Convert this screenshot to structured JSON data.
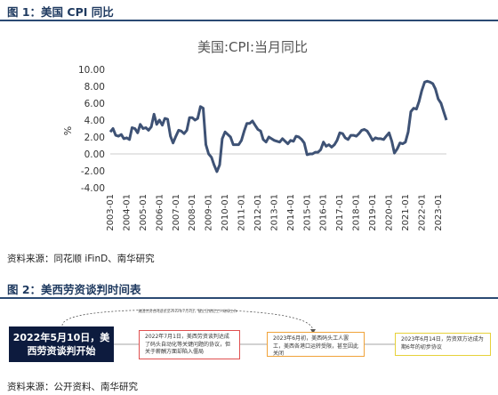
{
  "figure1": {
    "heading": "图 1：美国 CPI 同比",
    "source": "资料来源：同花顺 iFinD、南华研究"
  },
  "figure2": {
    "heading": "图 2：美西劳资谈判时间表",
    "source": "资料来源：公开资料、南华研究",
    "top_arrow_note": "美国劳资合同延长至2022年7月1日，截止日期后工人继续工作",
    "events": [
      {
        "text": "2022年5月10日，美西劳资谈判开始"
      },
      {
        "text": "2022年7月1日，美西劳资谈判达成了码头自动化等关键问题的协议，但关于薪酬方面却陷入僵局"
      },
      {
        "text": "2023年6月初，美西码头工人罢工，美西各港口运转受限，甚至因此关闭"
      },
      {
        "text": "2023年6月14日，劳资双方达成为期6年的初步协议"
      }
    ],
    "colors": {
      "event1": "#0d1b3e",
      "event2": "#e05050",
      "event3": "#f0a33a",
      "event4": "#e6d13a"
    }
  },
  "chart_data": {
    "type": "line",
    "title": "美国:CPI:当月同比",
    "ylabel": "%",
    "xlabel": "",
    "ylim": [
      -4,
      10
    ],
    "yticks": [
      "10.00",
      "8.00",
      "6.00",
      "4.00",
      "2.00",
      "0.00",
      "-2.00",
      "-4.00"
    ],
    "xticks": [
      "2003-01",
      "2004-01",
      "2005-01",
      "2006-01",
      "2007-01",
      "2008-01",
      "2009-01",
      "2010-01",
      "2011-01",
      "2012-01",
      "2013-01",
      "2014-01",
      "2015-01",
      "2016-01",
      "2017-01",
      "2018-01",
      "2019-01",
      "2020-01",
      "2021-01",
      "2022-01",
      "2023-01"
    ],
    "color": "#3e5275",
    "series": [
      {
        "x": [
          2003.0,
          2003.17,
          2003.33,
          2003.5,
          2003.67,
          2003.83,
          2004.0,
          2004.17,
          2004.33,
          2004.5,
          2004.67,
          2004.83,
          2005.0,
          2005.17,
          2005.33,
          2005.5,
          2005.67,
          2005.83,
          2006.0,
          2006.17,
          2006.33,
          2006.5,
          2006.67,
          2006.83,
          2007.0,
          2007.17,
          2007.33,
          2007.5,
          2007.67,
          2007.83,
          2008.0,
          2008.17,
          2008.33,
          2008.5,
          2008.67,
          2008.83,
          2009.0,
          2009.17,
          2009.33,
          2009.5,
          2009.67,
          2009.83,
          2010.0,
          2010.17,
          2010.33,
          2010.5,
          2010.67,
          2010.83,
          2011.0,
          2011.17,
          2011.33,
          2011.5,
          2011.67,
          2011.83,
          2012.0,
          2012.17,
          2012.33,
          2012.5,
          2012.67,
          2012.83,
          2013.0,
          2013.17,
          2013.33,
          2013.5,
          2013.67,
          2013.83,
          2014.0,
          2014.17,
          2014.33,
          2014.5,
          2014.67,
          2014.83,
          2015.0,
          2015.17,
          2015.33,
          2015.5,
          2015.67,
          2015.83,
          2016.0,
          2016.17,
          2016.33,
          2016.5,
          2016.67,
          2016.83,
          2017.0,
          2017.17,
          2017.33,
          2017.5,
          2017.67,
          2017.83,
          2018.0,
          2018.17,
          2018.33,
          2018.5,
          2018.67,
          2018.83,
          2019.0,
          2019.17,
          2019.33,
          2019.5,
          2019.67,
          2019.83,
          2020.0,
          2020.17,
          2020.33,
          2020.5,
          2020.67,
          2020.83,
          2021.0,
          2021.17,
          2021.33,
          2021.5,
          2021.67,
          2021.83,
          2022.0,
          2022.17,
          2022.33,
          2022.5,
          2022.67,
          2022.83,
          2023.0,
          2023.17,
          2023.33,
          2023.5
        ],
        "y": [
          2.6,
          3.0,
          2.2,
          2.1,
          2.3,
          1.8,
          1.9,
          1.7,
          3.1,
          3.0,
          2.5,
          3.5,
          3.0,
          3.1,
          2.8,
          3.2,
          4.7,
          3.5,
          4.0,
          3.4,
          4.2,
          4.1,
          2.1,
          1.3,
          2.1,
          2.8,
          2.7,
          2.4,
          2.8,
          4.3,
          4.3,
          4.0,
          4.2,
          5.6,
          5.4,
          1.1,
          0.0,
          -0.4,
          -1.3,
          -2.1,
          -1.3,
          1.8,
          2.6,
          2.3,
          2.0,
          1.1,
          1.1,
          1.1,
          1.6,
          2.7,
          3.6,
          3.6,
          3.9,
          3.4,
          2.9,
          2.7,
          1.7,
          1.4,
          2.0,
          1.8,
          1.6,
          1.5,
          1.4,
          1.8,
          1.5,
          1.2,
          1.6,
          1.5,
          2.1,
          2.0,
          1.7,
          1.3,
          -0.1,
          0.0,
          0.0,
          0.2,
          0.2,
          0.5,
          1.4,
          0.9,
          1.1,
          0.8,
          1.1,
          1.6,
          2.5,
          2.4,
          1.9,
          1.7,
          2.2,
          2.2,
          2.1,
          2.4,
          2.8,
          2.9,
          2.7,
          2.2,
          1.6,
          1.9,
          1.8,
          1.8,
          1.7,
          2.1,
          2.5,
          1.5,
          0.1,
          0.6,
          1.3,
          1.2,
          1.4,
          2.6,
          5.0,
          5.4,
          5.3,
          6.2,
          7.5,
          8.5,
          8.6,
          8.5,
          8.3,
          7.7,
          6.5,
          6.0,
          5.0,
          4.0
        ]
      }
    ]
  }
}
